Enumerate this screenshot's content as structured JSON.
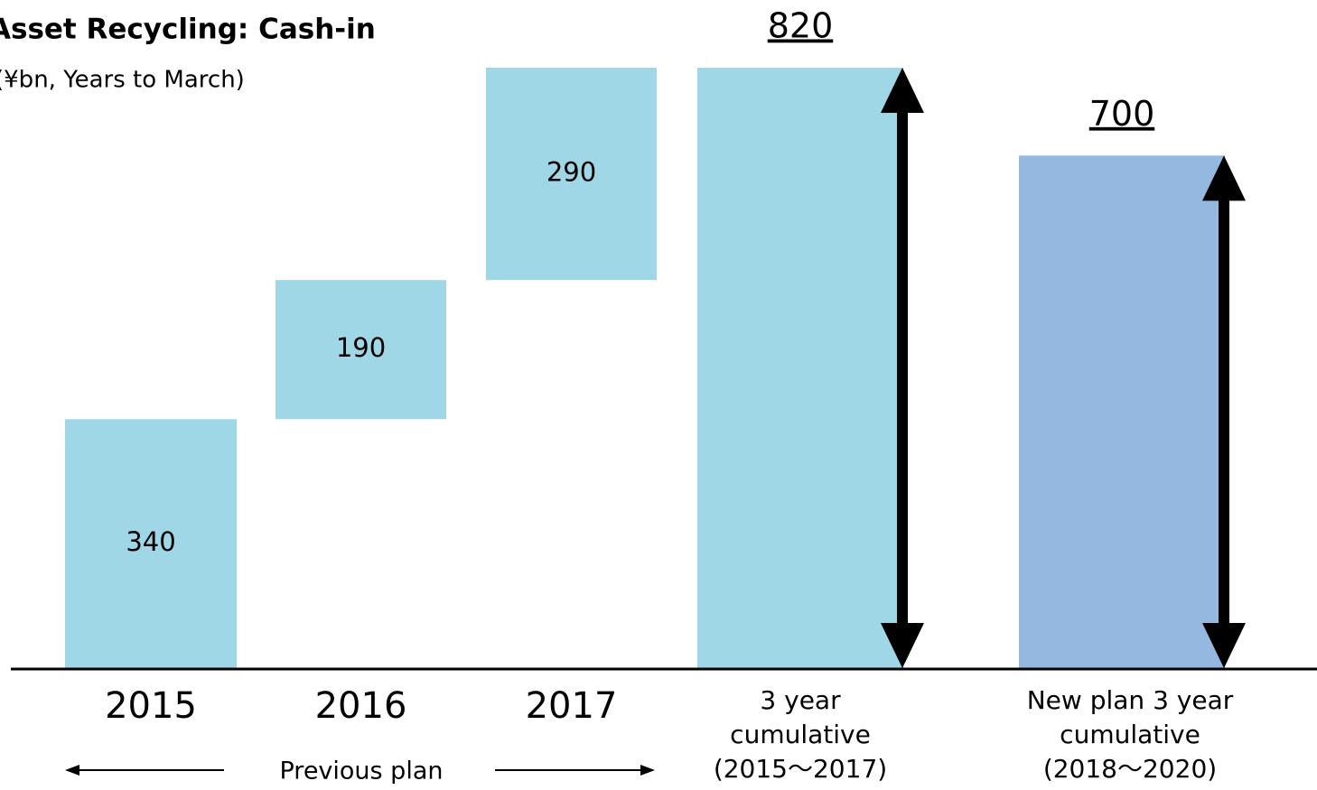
{
  "chart_data": {
    "type": "waterfall",
    "title": "Asset Recycling: Cash-in",
    "subtitle": "(¥bn, Years to March)",
    "categories": [
      [
        "2015"
      ],
      [
        "2016"
      ],
      [
        "2017"
      ],
      [
        "3 year",
        "cumulative",
        "(2015～2017)"
      ],
      [
        "New plan 3 year",
        "cumulative",
        "(2018～2020)"
      ]
    ],
    "values": [
      340,
      190,
      290,
      820,
      700
    ],
    "totals": [
      false,
      false,
      false,
      true,
      true
    ],
    "colors": [
      "#a0d7e6",
      "#a0d7e6",
      "#a0d7e6",
      "#a0d7e6",
      "#95b8e0"
    ],
    "ylim": [
      0,
      820
    ],
    "annotations": [
      "Previous plan"
    ]
  }
}
